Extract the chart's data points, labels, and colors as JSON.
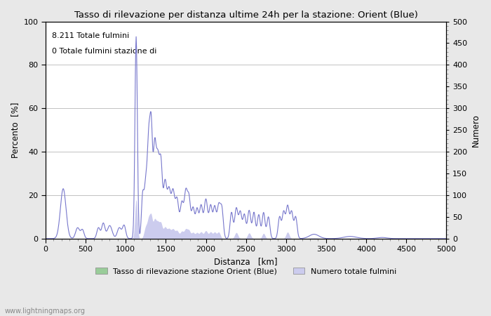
{
  "title": "Tasso di rilevazione per distanza ultime 24h per la stazione: Orient (Blue)",
  "xlabel": "Distanza   [km]",
  "ylabel_left": "Percento  [%]",
  "ylabel_right": "Numero",
  "annotation_line1": "8.211 Totale fulmini",
  "annotation_line2": "0 Totale fulmini stazione di",
  "watermark": "www.lightningmaps.org",
  "legend_green": "Tasso di rilevazione stazione Orient (Blue)",
  "legend_blue": "Numero totale fulmini",
  "xlim": [
    0,
    5000
  ],
  "ylim_left": [
    0,
    100
  ],
  "ylim_right": [
    0,
    500
  ],
  "x_ticks": [
    0,
    500,
    1000,
    1500,
    2000,
    2500,
    3000,
    3500,
    4000,
    4500,
    5000
  ],
  "y_ticks_left": [
    0,
    20,
    40,
    60,
    80,
    100
  ],
  "y_ticks_right": [
    0,
    50,
    100,
    150,
    200,
    250,
    300,
    350,
    400,
    450,
    500
  ],
  "bg_color": "#e8e8e8",
  "plot_bg_color": "#ffffff",
  "line_color": "#7777cc",
  "fill_blue_color": "#ccccee",
  "fill_green_color": "#99cc99",
  "grid_color": "#aaaaaa"
}
